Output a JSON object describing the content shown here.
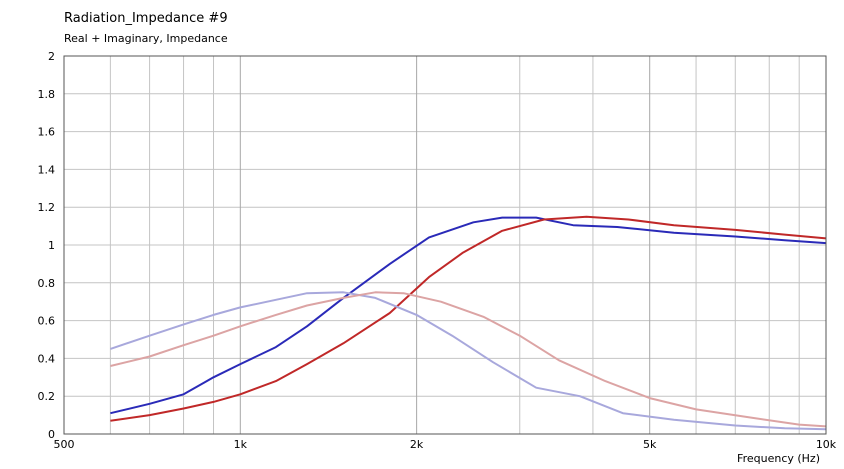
{
  "header": {
    "title": "Radiation_Impedance #9",
    "subtitle": "Real + Imaginary, Impedance"
  },
  "chart_data": {
    "type": "line",
    "title": "Radiation_Impedance #9",
    "subtitle": "Real + Imaginary, Impedance",
    "xlabel": "Frequency  (Hz)",
    "ylabel": "",
    "xscale": "log",
    "xlim": [
      500,
      10000
    ],
    "ylim": [
      0,
      2
    ],
    "grid": true,
    "x_ticks": [
      {
        "value": 500,
        "label": "500"
      },
      {
        "value": 1000,
        "label": "1k"
      },
      {
        "value": 2000,
        "label": "2k"
      },
      {
        "value": 5000,
        "label": "5k"
      },
      {
        "value": 10000,
        "label": "10k"
      }
    ],
    "y_ticks": [
      {
        "value": 0,
        "label": "0"
      },
      {
        "value": 0.2,
        "label": "0.2"
      },
      {
        "value": 0.4,
        "label": "0.4"
      },
      {
        "value": 0.6,
        "label": "0.6"
      },
      {
        "value": 0.8,
        "label": "0.8"
      },
      {
        "value": 1,
        "label": "1"
      },
      {
        "value": 1.2,
        "label": "1.2"
      },
      {
        "value": 1.4,
        "label": "1.4"
      },
      {
        "value": 1.6,
        "label": "1.6"
      },
      {
        "value": 1.8,
        "label": "1.8"
      },
      {
        "value": 2,
        "label": "2"
      }
    ],
    "series": [
      {
        "color": "#2a2ab8",
        "points": [
          [
            600,
            0.11
          ],
          [
            700,
            0.16
          ],
          [
            800,
            0.21
          ],
          [
            900,
            0.3
          ],
          [
            1000,
            0.37
          ],
          [
            1150,
            0.46
          ],
          [
            1300,
            0.57
          ],
          [
            1500,
            0.72
          ],
          [
            1800,
            0.9
          ],
          [
            2100,
            1.04
          ],
          [
            2500,
            1.12
          ],
          [
            2800,
            1.145
          ],
          [
            3200,
            1.145
          ],
          [
            3700,
            1.105
          ],
          [
            4400,
            1.095
          ],
          [
            5500,
            1.065
          ],
          [
            7000,
            1.045
          ],
          [
            8500,
            1.025
          ],
          [
            10000,
            1.01
          ]
        ]
      },
      {
        "color": "#c02828",
        "points": [
          [
            600,
            0.07
          ],
          [
            700,
            0.1
          ],
          [
            800,
            0.135
          ],
          [
            900,
            0.17
          ],
          [
            1000,
            0.21
          ],
          [
            1150,
            0.28
          ],
          [
            1300,
            0.37
          ],
          [
            1500,
            0.48
          ],
          [
            1800,
            0.64
          ],
          [
            2100,
            0.83
          ],
          [
            2400,
            0.96
          ],
          [
            2800,
            1.075
          ],
          [
            3300,
            1.135
          ],
          [
            3900,
            1.15
          ],
          [
            4600,
            1.135
          ],
          [
            5500,
            1.105
          ],
          [
            7000,
            1.08
          ],
          [
            8500,
            1.055
          ],
          [
            10000,
            1.035
          ]
        ]
      },
      {
        "color": "#a8a8dc",
        "points": [
          [
            600,
            0.45
          ],
          [
            700,
            0.52
          ],
          [
            800,
            0.58
          ],
          [
            900,
            0.63
          ],
          [
            1000,
            0.67
          ],
          [
            1150,
            0.71
          ],
          [
            1300,
            0.745
          ],
          [
            1500,
            0.75
          ],
          [
            1700,
            0.72
          ],
          [
            2000,
            0.63
          ],
          [
            2300,
            0.52
          ],
          [
            2700,
            0.38
          ],
          [
            3200,
            0.245
          ],
          [
            3800,
            0.2
          ],
          [
            4500,
            0.11
          ],
          [
            5500,
            0.075
          ],
          [
            7000,
            0.045
          ],
          [
            8500,
            0.03
          ],
          [
            10000,
            0.025
          ]
        ]
      },
      {
        "color": "#dca4a4",
        "points": [
          [
            600,
            0.36
          ],
          [
            700,
            0.41
          ],
          [
            800,
            0.47
          ],
          [
            900,
            0.52
          ],
          [
            1000,
            0.57
          ],
          [
            1150,
            0.63
          ],
          [
            1300,
            0.68
          ],
          [
            1500,
            0.72
          ],
          [
            1700,
            0.75
          ],
          [
            1900,
            0.745
          ],
          [
            2200,
            0.7
          ],
          [
            2600,
            0.62
          ],
          [
            3000,
            0.52
          ],
          [
            3500,
            0.39
          ],
          [
            4200,
            0.28
          ],
          [
            5000,
            0.19
          ],
          [
            6000,
            0.13
          ],
          [
            7500,
            0.085
          ],
          [
            9000,
            0.05
          ],
          [
            10000,
            0.04
          ]
        ]
      }
    ]
  }
}
